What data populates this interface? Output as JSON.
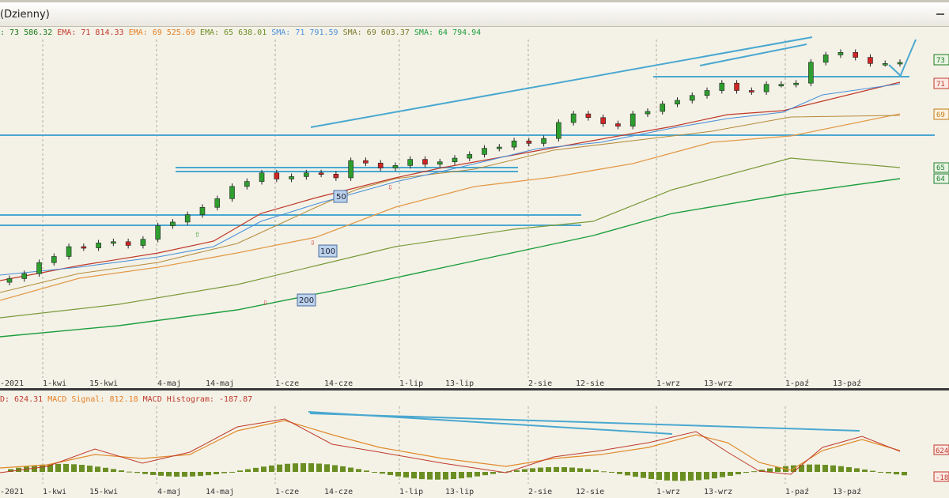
{
  "window": {
    "title": "(Dzienny)"
  },
  "legend_main": [
    {
      "text": ": 73 586.32",
      "color": "#1a7a1a"
    },
    {
      "text": " EMA: 71 814.33",
      "color": "#c0392b"
    },
    {
      "text": " EMA: 69 525.69",
      "color": "#e67e22"
    },
    {
      "text": " EMA: 65 638.01",
      "color": "#6b8e23"
    },
    {
      "text": " SMA: 71 791.59",
      "color": "#4a90d9"
    },
    {
      "text": " SMA: 69 603.37",
      "color": "#7a7a2a"
    },
    {
      "text": " SMA: 64 794.94",
      "color": "#1e9e3e"
    }
  ],
  "legend_macd": [
    {
      "text": "D: 624.31",
      "color": "#c0392b"
    },
    {
      "text": " MACD Signal: 812.18",
      "color": "#e67e22"
    },
    {
      "text": " MACD Histogram: -187.87",
      "color": "#c0392b"
    }
  ],
  "x_labels": [
    "-2021",
    "1-kwi",
    "15-kwi",
    "4-maj",
    "14-maj",
    "1-cze",
    "14-cze",
    "1-lip",
    "13-lip",
    "2-sie",
    "12-sie",
    "1-wrz",
    "13-wrz",
    "1-paź",
    "13-paź"
  ],
  "right_tags": [
    {
      "text": "73",
      "color": "#1a7a1a"
    },
    {
      "text": "71",
      "color": "#c0392b"
    },
    {
      "text": "69",
      "color": "#c07a14"
    },
    {
      "text": "65",
      "color": "#1e7e2e"
    },
    {
      "text": "64",
      "color": "#1e7e2e"
    }
  ],
  "macd_tags": [
    {
      "text": "624",
      "color": "#c0392b"
    },
    {
      "text": "-18",
      "color": "#c0392b"
    }
  ],
  "badges": [
    "50",
    "100",
    "200"
  ],
  "colors": {
    "up": "#2e9e2e",
    "down": "#d02525",
    "trendline": "#4aa8d0",
    "grid": "#9a9a8a"
  },
  "chart_data": {
    "type": "candlestick",
    "indicators": [
      "EMA 20",
      "EMA 50",
      "EMA 100",
      "SMA 20",
      "SMA 50",
      "SMA 200",
      "MACD",
      "MACD Signal",
      "MACD Histogram"
    ],
    "close_path": [
      56000,
      56400,
      57300,
      57800,
      58600,
      58500,
      58900,
      59000,
      58700,
      59200,
      60300,
      60600,
      61200,
      61800,
      62500,
      63500,
      63900,
      64600,
      64100,
      64300,
      64600,
      64500,
      64200,
      65600,
      65400,
      65000,
      65200,
      65700,
      65300,
      65500,
      65800,
      66100,
      66600,
      66700,
      67200,
      67000,
      67400,
      68700,
      69400,
      69100,
      68600,
      68400,
      69400,
      69600,
      70200,
      70500,
      70900,
      71300,
      71900,
      71300,
      71200,
      71800,
      71800,
      71900,
      73600,
      74200,
      74400,
      74000,
      73500,
      73500,
      73586
    ],
    "last_values": {
      "price": 73586.32,
      "ema_fast": 71814.33,
      "ema_mid": 69525.69,
      "ema_slow": 65638.01,
      "sma_fast": 71791.59,
      "sma_mid": 69603.37,
      "sma_slow": 64794.94
    },
    "macd_last": {
      "macd": 624.31,
      "signal": 812.18,
      "histogram": -187.87
    }
  }
}
